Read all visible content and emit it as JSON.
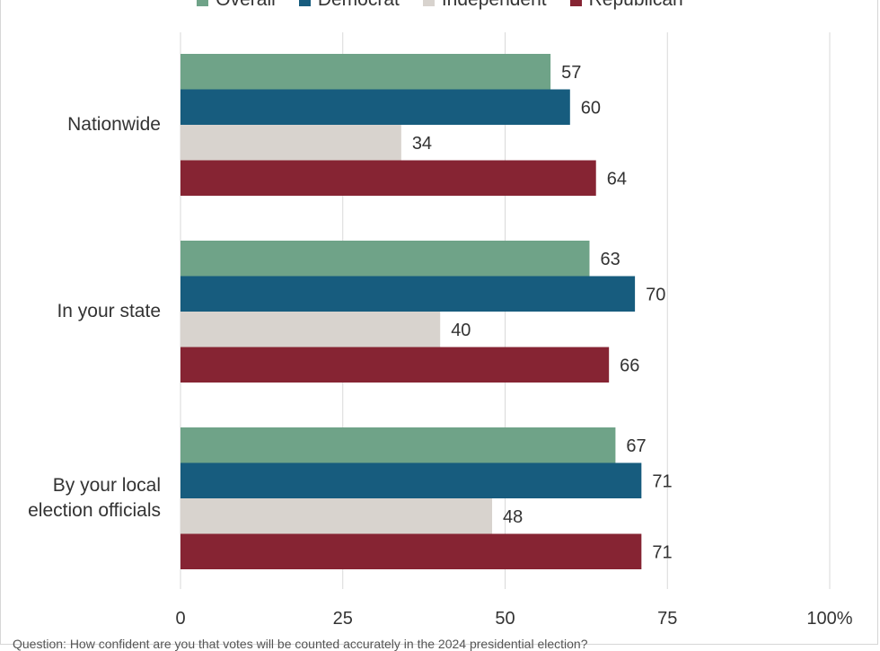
{
  "chart_data": {
    "type": "bar",
    "orientation": "horizontal",
    "categories": [
      "Nationwide",
      "In your state",
      "By your local election officials"
    ],
    "series": [
      {
        "name": "Overall",
        "color": "#6fa388",
        "values": [
          57,
          63,
          67
        ]
      },
      {
        "name": "Democrat",
        "color": "#175c7e",
        "values": [
          60,
          70,
          71
        ]
      },
      {
        "name": "Independent",
        "color": "#d8d3ce",
        "values": [
          34,
          40,
          48
        ]
      },
      {
        "name": "Republican",
        "color": "#862433",
        "values": [
          64,
          66,
          71
        ]
      }
    ],
    "x_ticks": [
      "0",
      "25",
      "50",
      "75",
      "100%"
    ],
    "xlim": [
      0,
      100
    ],
    "grid": true,
    "legend_position": "top"
  },
  "category_lines": [
    [
      "Nationwide"
    ],
    [
      "In your state"
    ],
    [
      "By your local",
      "election officials"
    ]
  ],
  "footnote": "Question: How confident are you that votes will be counted accurately in the 2024 presidential election?"
}
